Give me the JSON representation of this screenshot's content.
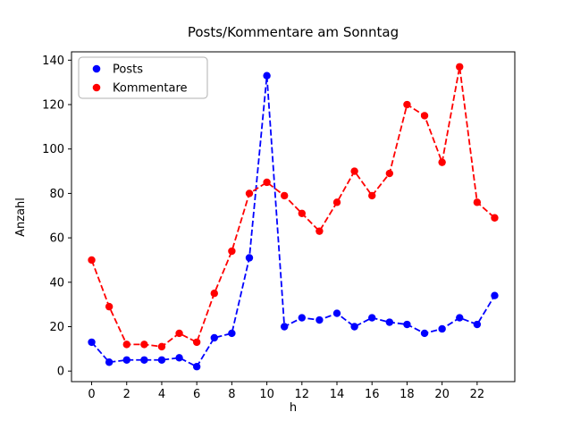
{
  "chart_data": {
    "type": "line",
    "title": "Posts/Kommentare am Sonntag",
    "xlabel": "h",
    "ylabel": "Anzahl",
    "x": [
      0,
      1,
      2,
      3,
      4,
      5,
      6,
      7,
      8,
      9,
      10,
      11,
      12,
      13,
      14,
      15,
      16,
      17,
      18,
      19,
      20,
      21,
      22,
      23
    ],
    "series": [
      {
        "name": "Posts",
        "color": "#0000ff",
        "linestyle": "dashed",
        "marker": "circle",
        "values": [
          13,
          4,
          5,
          5,
          5,
          6,
          2,
          15,
          17,
          51,
          133,
          20,
          24,
          23,
          26,
          20,
          24,
          22,
          21,
          17,
          19,
          24,
          21,
          34
        ]
      },
      {
        "name": "Kommentare",
        "color": "#ff0000",
        "linestyle": "dashed",
        "marker": "circle",
        "values": [
          50,
          29,
          12,
          12,
          11,
          17,
          13,
          35,
          54,
          80,
          85,
          79,
          71,
          63,
          76,
          90,
          79,
          89,
          120,
          115,
          94,
          137,
          76,
          69
        ]
      }
    ],
    "xlim": [
      -1.15,
      24.15
    ],
    "ylim": [
      -4.75,
      143.75
    ],
    "xticks": [
      0,
      2,
      4,
      6,
      8,
      10,
      12,
      14,
      16,
      18,
      20,
      22
    ],
    "yticks": [
      0,
      20,
      40,
      60,
      80,
      100,
      120,
      140
    ],
    "grid": false,
    "legend_position": "upper left",
    "axis_color": "#000000",
    "legend_border_color": "#b0b0b0"
  }
}
